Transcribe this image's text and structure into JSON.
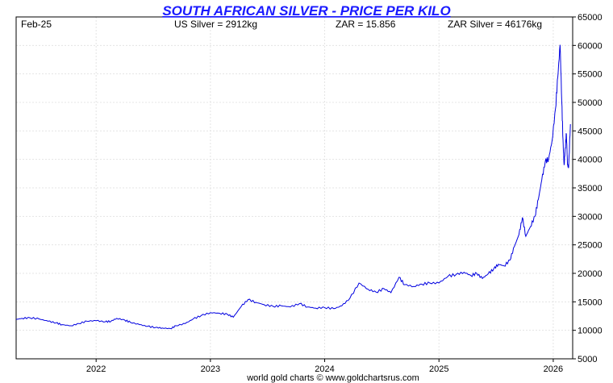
{
  "chart_data": {
    "type": "line",
    "title": "SOUTH AFRICAN SILVER - PRICE PER KILO",
    "info": {
      "date": "Feb-25",
      "us_silver": "US Silver = 2912kg",
      "zar": "ZAR = 15.856",
      "zar_silver": "ZAR Silver = 46176kg"
    },
    "footer": "world gold charts © www.goldchartsrus.com",
    "ylim": [
      5000,
      65000
    ],
    "yticks": [
      "5000",
      "10000",
      "15000",
      "20000",
      "25000",
      "30000",
      "35000",
      "40000",
      "45000",
      "50000",
      "55000",
      "60000",
      "65000"
    ],
    "xlim": [
      2021.3,
      2026.17
    ],
    "xticks": [
      {
        "label": "2022",
        "value": 2022
      },
      {
        "label": "2023",
        "value": 2023
      },
      {
        "label": "2024",
        "value": 2024
      },
      {
        "label": "2025",
        "value": 2025
      },
      {
        "label": "2026",
        "value": 2026
      }
    ],
    "grid": true,
    "series": [
      {
        "color": "#0000e0",
        "x": [
          2021.3,
          2021.35,
          2021.42,
          2021.5,
          2021.58,
          2021.65,
          2021.7,
          2021.78,
          2021.85,
          2021.92,
          2022.0,
          2022.08,
          2022.13,
          2022.18,
          2022.25,
          2022.3,
          2022.38,
          2022.45,
          2022.52,
          2022.58,
          2022.65,
          2022.7,
          2022.78,
          2022.85,
          2022.92,
          2023.0,
          2023.08,
          2023.15,
          2023.2,
          2023.27,
          2023.33,
          2023.4,
          2023.47,
          2023.55,
          2023.62,
          2023.7,
          2023.78,
          2023.85,
          2023.92,
          2024.0,
          2024.08,
          2024.15,
          2024.22,
          2024.3,
          2024.38,
          2024.45,
          2024.52,
          2024.58,
          2024.65,
          2024.7,
          2024.78,
          2024.85,
          2024.92,
          2025.0,
          2025.08,
          2025.15,
          2025.22,
          2025.28,
          2025.33,
          2025.38,
          2025.43,
          2025.48,
          2025.52,
          2025.57,
          2025.62,
          2025.66,
          2025.7,
          2025.73,
          2025.76,
          2025.8,
          2025.84,
          2025.87,
          2025.9,
          2025.93,
          2025.96,
          2025.99,
          2026.02,
          2026.04,
          2026.06,
          2026.075,
          2026.085,
          2026.095,
          2026.105,
          2026.115,
          2026.125,
          2026.135,
          2026.15
        ],
        "values": [
          11900,
          12100,
          12200,
          12000,
          11600,
          11300,
          11000,
          10800,
          11200,
          11600,
          11700,
          11500,
          11600,
          12100,
          11800,
          11400,
          11000,
          10700,
          10500,
          10400,
          10300,
          10800,
          11200,
          12000,
          12600,
          13100,
          13000,
          12800,
          12300,
          14200,
          15400,
          14900,
          14500,
          14200,
          14300,
          14100,
          14700,
          14100,
          13900,
          14000,
          13800,
          14300,
          15600,
          18300,
          17200,
          16700,
          17300,
          16600,
          19300,
          18000,
          17700,
          18100,
          18300,
          18300,
          19500,
          19800,
          20200,
          19600,
          20000,
          19100,
          19900,
          20800,
          21600,
          21300,
          22300,
          24700,
          26800,
          29800,
          26500,
          28200,
          30000,
          33000,
          36400,
          39600,
          40100,
          43300,
          48900,
          54500,
          60100,
          50000,
          43500,
          39000,
          42000,
          44500,
          39000,
          38600,
          46176
        ]
      }
    ]
  }
}
